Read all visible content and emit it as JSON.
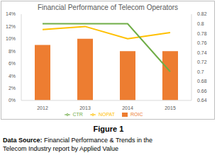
{
  "chart_data": {
    "type": "bar",
    "title": "Financial Performance of Telecom Operators",
    "categories": [
      "2012",
      "2013",
      "2014",
      "2015"
    ],
    "series": [
      {
        "name": "ROIC",
        "type": "bar",
        "color": "#ED7D31",
        "values": [
          9,
          10,
          8,
          8
        ]
      },
      {
        "name": "NOPAT",
        "type": "line",
        "color": "#FFC000",
        "values": [
          11.5,
          12,
          10,
          11
        ]
      },
      {
        "name": "CTR",
        "type": "line",
        "color": "#70AD47",
        "axis": "y2",
        "values": [
          0.8,
          0.8,
          0.8,
          0.7
        ]
      }
    ],
    "ylim": [
      0,
      14
    ],
    "yticks": [
      {
        "value": 0,
        "label": "0%"
      },
      {
        "value": 2,
        "label": "2%"
      },
      {
        "value": 4,
        "label": "4%"
      },
      {
        "value": 6,
        "label": "6%"
      },
      {
        "value": 8,
        "label": "8%"
      },
      {
        "value": 10,
        "label": "10%"
      },
      {
        "value": 12,
        "label": "12%"
      },
      {
        "value": 14,
        "label": "14%"
      }
    ],
    "y2lim": [
      0.64,
      0.82
    ],
    "y2ticks": [
      0.64,
      0.66,
      0.68,
      0.7,
      0.72,
      0.74,
      0.76,
      0.78,
      0.8,
      0.82
    ],
    "grid": false,
    "legend": "bottom"
  },
  "caption": {
    "label": "Figure 1",
    "source_label": "Data Source:",
    "source": "Financial Performance & Trends in the Telecom Industry report by Applied Value"
  }
}
